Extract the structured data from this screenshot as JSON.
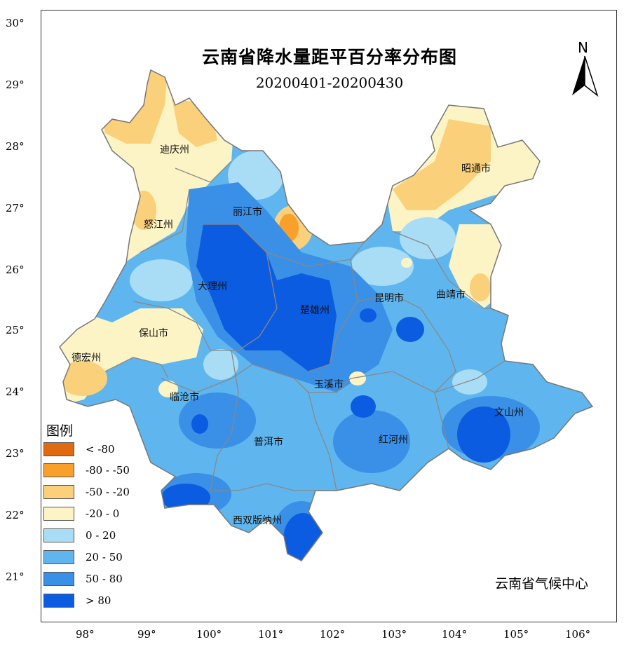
{
  "title": "云南省降水量距平百分率分布图",
  "subtitle": "20200401-20200430",
  "north_label": "N",
  "credit": "云南省气候中心",
  "latitude_labels": [
    "30°",
    "29°",
    "28°",
    "27°",
    "26°",
    "25°",
    "24°",
    "23°",
    "22°",
    "21°"
  ],
  "longitude_labels": [
    "98°",
    "99°",
    "100°",
    "101°",
    "102°",
    "103°",
    "104°",
    "105°",
    "106°"
  ],
  "legend": {
    "title": "图例",
    "items": [
      {
        "label": "< -80",
        "color": "#e06a0f"
      },
      {
        "label": "-80 - -50",
        "color": "#f9a02c"
      },
      {
        "label": "-50 - -20",
        "color": "#fbd07a"
      },
      {
        "label": "-20 - 0",
        "color": "#fdf4c6"
      },
      {
        "label": "0 - 20",
        "color": "#a9ddf6"
      },
      {
        "label": "20 - 50",
        "color": "#5fb6ee"
      },
      {
        "label": "50 - 80",
        "color": "#3a8fe6"
      },
      {
        "label": "> 80",
        "color": "#0b5ce0"
      }
    ]
  },
  "cities": [
    "迪庆州",
    "丽江市",
    "昭通市",
    "怒江州",
    "大理州",
    "楚雄州",
    "昆明市",
    "曲靖市",
    "保山市",
    "德宏州",
    "玉溪市",
    "临沧市",
    "文山州",
    "普洱市",
    "红河州",
    "西双版纳州"
  ]
}
